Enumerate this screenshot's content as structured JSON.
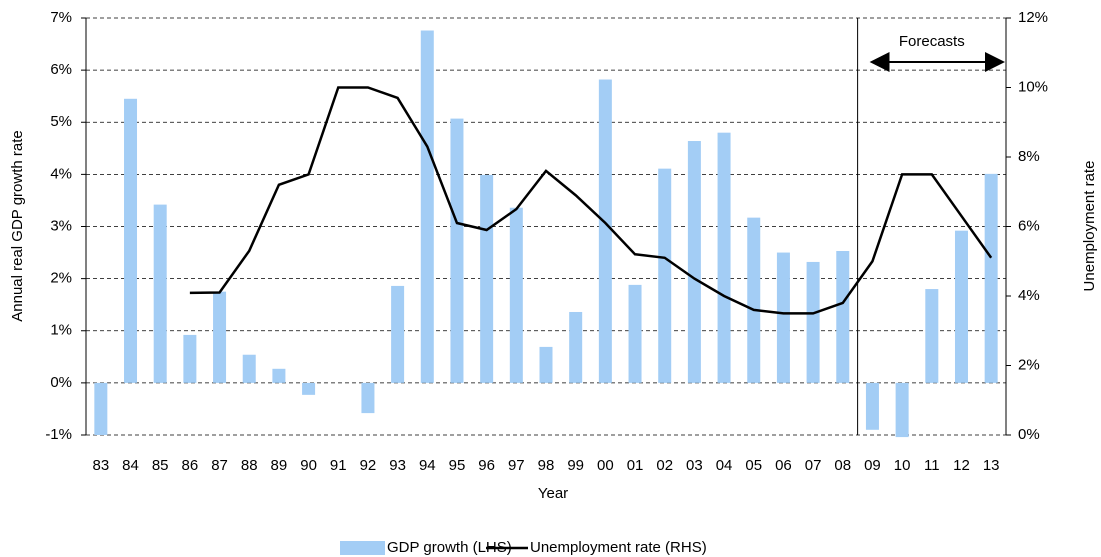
{
  "chart_data": {
    "type": "bar",
    "x_label": "Year",
    "y_label": "Annual real GDP growth rate",
    "y2_label": "Unemployment rate",
    "annotation": "Forecasts",
    "categories": [
      "83",
      "84",
      "85",
      "86",
      "87",
      "88",
      "89",
      "90",
      "91",
      "92",
      "93",
      "94",
      "95",
      "96",
      "97",
      "98",
      "99",
      "00",
      "01",
      "02",
      "03",
      "04",
      "05",
      "06",
      "07",
      "08",
      "09",
      "10",
      "11",
      "12",
      "13"
    ],
    "series": [
      {
        "name": "GDP growth (LHS)",
        "type": "bar",
        "color": "#a3cdf5",
        "values": [
          -1.0,
          5.45,
          3.42,
          0.92,
          1.75,
          0.54,
          0.27,
          -0.23,
          null,
          -0.58,
          1.86,
          6.76,
          5.07,
          3.99,
          3.36,
          0.69,
          1.36,
          5.82,
          1.88,
          4.11,
          4.64,
          4.8,
          3.17,
          2.5,
          2.32,
          2.53,
          -0.9,
          -1.04,
          1.8,
          2.92,
          4.01
        ]
      },
      {
        "name": "Unemployment rate (RHS)",
        "type": "line",
        "color": "#000000",
        "axis": "y2",
        "values": [
          null,
          null,
          null,
          4.09,
          4.1,
          5.3,
          7.2,
          7.5,
          10.0,
          10.0,
          9.7,
          8.3,
          6.1,
          5.9,
          6.5,
          7.6,
          6.9,
          6.1,
          5.2,
          5.1,
          4.5,
          4.0,
          3.6,
          3.5,
          3.5,
          3.8,
          5.0,
          7.5,
          7.5,
          6.3,
          5.1
        ]
      }
    ],
    "forecast_start": "09",
    "ylim": [
      -1,
      7
    ],
    "yticks": [
      {
        "value": -1,
        "label": "-1%"
      },
      {
        "value": 0,
        "label": "0%"
      },
      {
        "value": 1,
        "label": "1%"
      },
      {
        "value": 2,
        "label": "2%"
      },
      {
        "value": 3,
        "label": "3%"
      },
      {
        "value": 4,
        "label": "4%"
      },
      {
        "value": 5,
        "label": "5%"
      },
      {
        "value": 6,
        "label": "6%"
      },
      {
        "value": 7,
        "label": "7%"
      }
    ],
    "y2lim": [
      0,
      12
    ],
    "y2ticks": [
      {
        "value": 0,
        "label": "0%"
      },
      {
        "value": 2,
        "label": "2%"
      },
      {
        "value": 4,
        "label": "4%"
      },
      {
        "value": 6,
        "label": "6%"
      },
      {
        "value": 8,
        "label": "8%"
      },
      {
        "value": 10,
        "label": "10%"
      },
      {
        "value": 12,
        "label": "12%"
      }
    ],
    "grid": true
  }
}
